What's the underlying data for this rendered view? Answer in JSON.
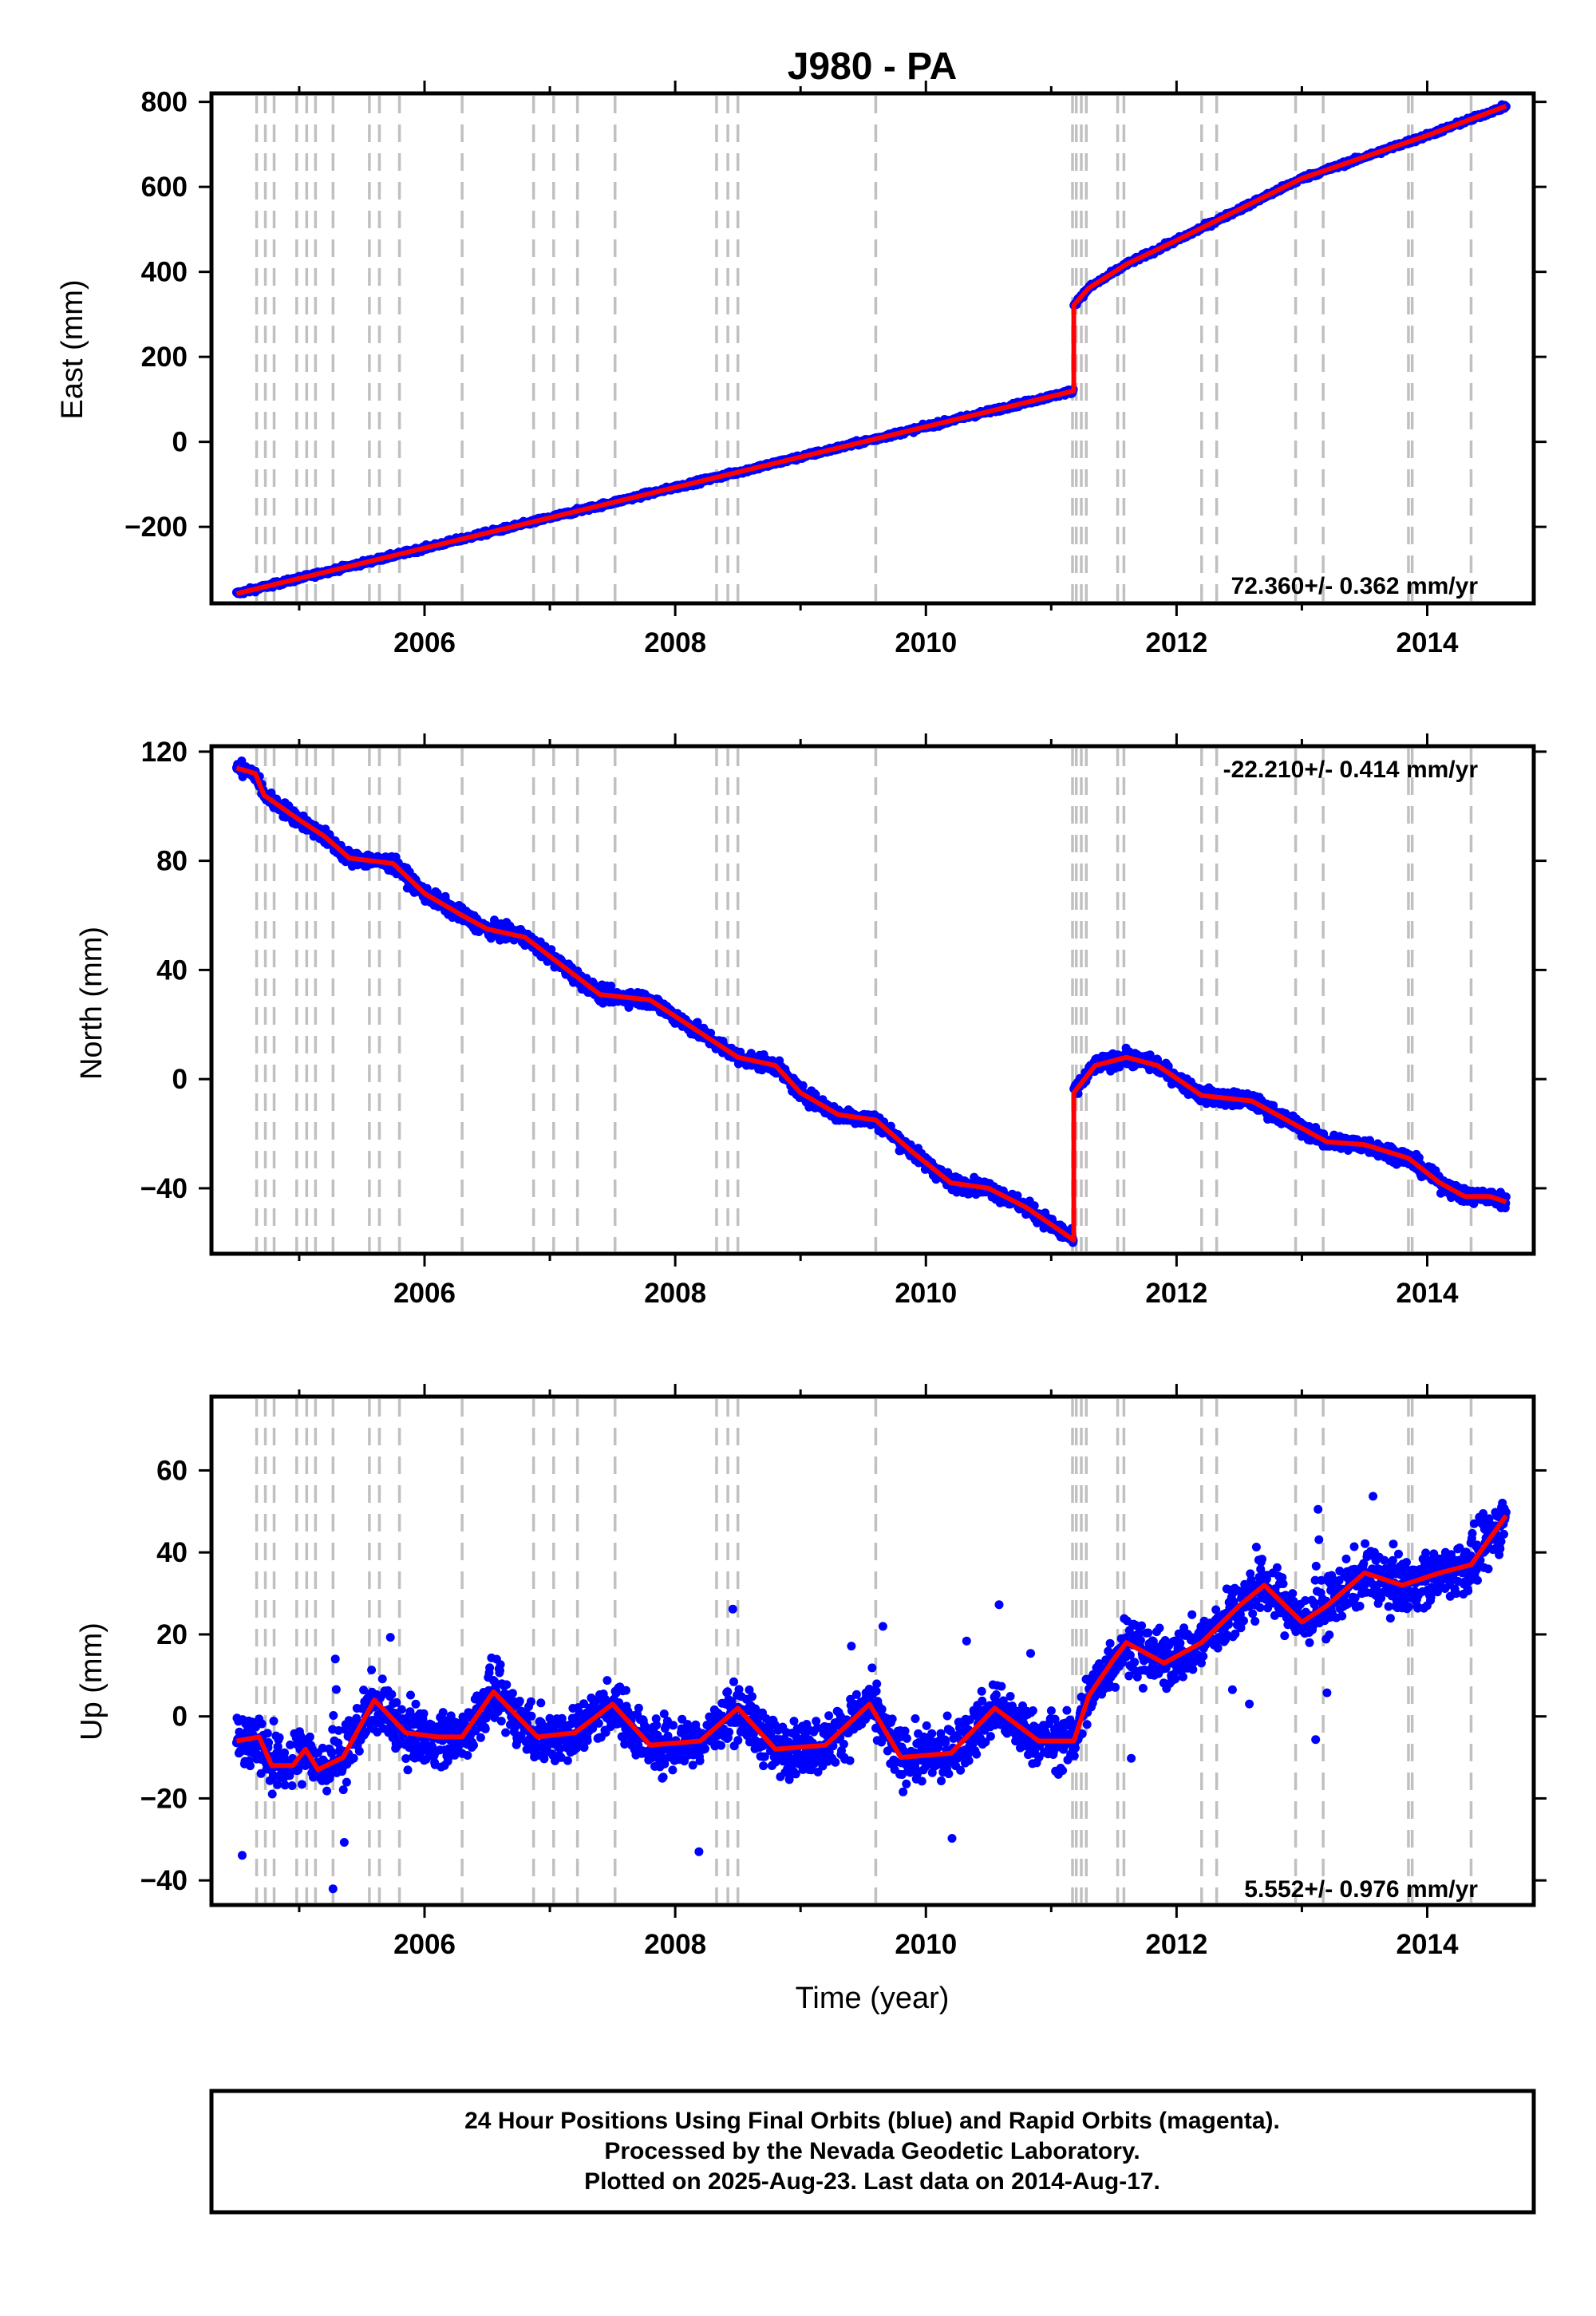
{
  "title": "J980 - PA",
  "xlabel": "Time (year)",
  "colors": {
    "final_orbits": "#0000ff",
    "model": "#ff0000",
    "steps": "#c0c0c0",
    "frame": "#000000"
  },
  "footer": {
    "line1": "24 Hour Positions Using Final Orbits (blue) and Rapid Orbits (magenta).",
    "line2": "Processed by the Nevada Geodetic Laboratory.",
    "line3": "Plotted on 2025-Aug-23. Last data on 2014-Aug-17."
  },
  "chart_data": [
    {
      "type": "scatter",
      "name": "east",
      "ylabel": "East (mm)",
      "rate_label": "72.360+/- 0.362 mm/yr",
      "rate_position": "bottom-right",
      "xlim": [
        2004.3,
        2014.85
      ],
      "ylim": [
        -380,
        820
      ],
      "x_ticks": [
        2006,
        2008,
        2010,
        2012,
        2014
      ],
      "y_ticks": [
        800,
        600,
        400,
        200,
        0,
        -200
      ],
      "y_tick_labels": [
        "800",
        "600",
        "400",
        "200",
        "0",
        "−200"
      ],
      "grid": false,
      "trend": [
        [
          2004.5,
          -357
        ],
        [
          2011.18,
          120
        ],
        [
          2011.18,
          322
        ],
        [
          2011.3,
          362
        ],
        [
          2011.6,
          418
        ],
        [
          2012.0,
          474
        ],
        [
          2013.0,
          620
        ],
        [
          2014.0,
          721
        ],
        [
          2014.63,
          790
        ]
      ],
      "noise": 5
    },
    {
      "type": "scatter",
      "name": "north",
      "ylabel": "North (mm)",
      "rate_label": "-22.210+/- 0.414 mm/yr",
      "rate_position": "top-right",
      "xlim": [
        2004.3,
        2014.85
      ],
      "ylim": [
        -64,
        122
      ],
      "x_ticks": [
        2006,
        2008,
        2010,
        2012,
        2014
      ],
      "y_ticks": [
        120,
        80,
        40,
        0,
        -40
      ],
      "y_tick_labels": [
        "120",
        "80",
        "40",
        "0",
        "−40"
      ],
      "grid": false,
      "trend": [
        [
          2004.5,
          114
        ],
        [
          2004.65,
          112
        ],
        [
          2004.72,
          104
        ],
        [
          2005.0,
          95
        ],
        [
          2005.2,
          89
        ],
        [
          2005.4,
          81
        ],
        [
          2005.75,
          79
        ],
        [
          2006.0,
          68
        ],
        [
          2006.3,
          60
        ],
        [
          2006.5,
          55
        ],
        [
          2006.8,
          52
        ],
        [
          2007.2,
          38
        ],
        [
          2007.4,
          31
        ],
        [
          2007.8,
          29
        ],
        [
          2008.0,
          23
        ],
        [
          2008.3,
          14
        ],
        [
          2008.5,
          8
        ],
        [
          2008.8,
          5
        ],
        [
          2009.0,
          -5
        ],
        [
          2009.3,
          -13
        ],
        [
          2009.6,
          -15
        ],
        [
          2009.9,
          -27
        ],
        [
          2010.2,
          -38
        ],
        [
          2010.5,
          -40
        ],
        [
          2010.8,
          -47
        ],
        [
          2011.18,
          -59
        ],
        [
          2011.18,
          -5
        ],
        [
          2011.35,
          5
        ],
        [
          2011.6,
          8
        ],
        [
          2011.85,
          5
        ],
        [
          2012.2,
          -6
        ],
        [
          2012.6,
          -8
        ],
        [
          2013.0,
          -18
        ],
        [
          2013.2,
          -23
        ],
        [
          2013.5,
          -24
        ],
        [
          2013.85,
          -29
        ],
        [
          2014.1,
          -38
        ],
        [
          2014.3,
          -43
        ],
        [
          2014.5,
          -43
        ],
        [
          2014.63,
          -45
        ]
      ],
      "noise": 2.5
    },
    {
      "type": "scatter",
      "name": "up",
      "ylabel": "Up (mm)",
      "rate_label": "5.552+/- 0.976 mm/yr",
      "rate_position": "bottom-right",
      "xlim": [
        2004.3,
        2014.85
      ],
      "ylim": [
        -46,
        78
      ],
      "x_ticks": [
        2006,
        2008,
        2010,
        2012,
        2014
      ],
      "y_ticks": [
        60,
        40,
        20,
        0,
        -20,
        -40
      ],
      "y_tick_labels": [
        "60",
        "40",
        "20",
        "0",
        "−20",
        "−40"
      ],
      "grid": false,
      "trend": [
        [
          2004.5,
          -6
        ],
        [
          2004.68,
          -5
        ],
        [
          2004.78,
          -12
        ],
        [
          2004.95,
          -12
        ],
        [
          2005.05,
          -8
        ],
        [
          2005.15,
          -13
        ],
        [
          2005.35,
          -10
        ],
        [
          2005.6,
          4
        ],
        [
          2005.85,
          -4
        ],
        [
          2006.1,
          -5
        ],
        [
          2006.3,
          -5
        ],
        [
          2006.55,
          6
        ],
        [
          2006.9,
          -5
        ],
        [
          2007.2,
          -4
        ],
        [
          2007.5,
          3
        ],
        [
          2007.8,
          -7
        ],
        [
          2008.2,
          -6
        ],
        [
          2008.5,
          2
        ],
        [
          2008.8,
          -8
        ],
        [
          2009.2,
          -7
        ],
        [
          2009.55,
          3
        ],
        [
          2009.8,
          -10
        ],
        [
          2010.2,
          -9
        ],
        [
          2010.55,
          2
        ],
        [
          2010.9,
          -6
        ],
        [
          2011.18,
          -6
        ],
        [
          2011.3,
          5
        ],
        [
          2011.5,
          14
        ],
        [
          2011.6,
          18
        ],
        [
          2011.9,
          13
        ],
        [
          2012.2,
          18
        ],
        [
          2012.5,
          27
        ],
        [
          2012.7,
          32
        ],
        [
          2013.0,
          23
        ],
        [
          2013.2,
          27
        ],
        [
          2013.5,
          35
        ],
        [
          2013.8,
          32
        ],
        [
          2014.1,
          35
        ],
        [
          2014.35,
          37
        ],
        [
          2014.63,
          49
        ]
      ],
      "noise": 6
    }
  ],
  "steps_x": [
    2004.66,
    2004.73,
    2004.8,
    2004.98,
    2005.06,
    2005.13,
    2005.27,
    2005.56,
    2005.64,
    2005.8,
    2006.3,
    2006.87,
    2007.03,
    2007.22,
    2007.52,
    2008.33,
    2008.42,
    2008.5,
    2009.6,
    2011.17,
    2011.2,
    2011.24,
    2011.28,
    2011.53,
    2011.58,
    2012.2,
    2012.32,
    2012.95,
    2013.17,
    2013.85,
    2013.88,
    2014.35
  ]
}
